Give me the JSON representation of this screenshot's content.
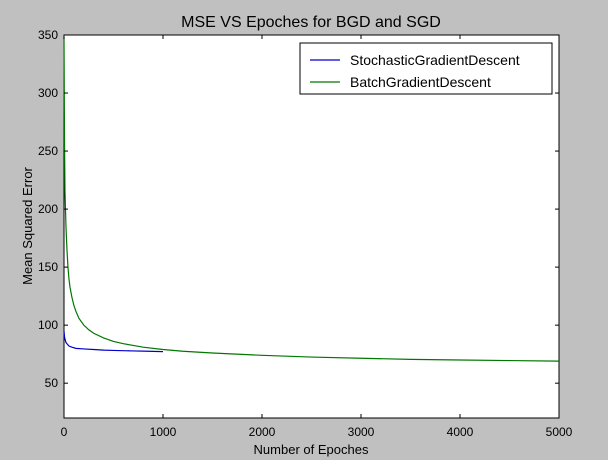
{
  "chart_data": {
    "type": "line",
    "title": "MSE VS Epoches for BGD and SGD",
    "xlabel": "Number of Epoches",
    "ylabel": "Mean Squared Error",
    "xlim": [
      0,
      5000
    ],
    "ylim": [
      20,
      350
    ],
    "xticks": [
      0,
      1000,
      2000,
      3000,
      4000,
      5000
    ],
    "yticks": [
      50,
      100,
      150,
      200,
      250,
      300,
      350
    ],
    "grid": false,
    "legend_position": "top-right",
    "series": [
      {
        "name": "StochasticGradientDescent",
        "color": "#0000cc",
        "x": [
          0,
          5,
          10,
          20,
          30,
          50,
          80,
          120,
          200,
          300,
          400,
          500,
          600,
          700,
          800,
          900,
          1000
        ],
        "y": [
          95,
          90,
          88,
          85,
          84,
          82,
          81,
          80,
          79.5,
          79,
          78.5,
          78.2,
          78,
          77.8,
          77.6,
          77.4,
          77.2
        ]
      },
      {
        "name": "BatchGradientDescent",
        "color": "#007700",
        "x": [
          0,
          5,
          10,
          20,
          30,
          40,
          50,
          60,
          80,
          100,
          120,
          150,
          200,
          250,
          300,
          400,
          500,
          600,
          700,
          800,
          1000,
          1200,
          1500,
          2000,
          2500,
          3000,
          3500,
          4000,
          4500,
          5000
        ],
        "y": [
          348,
          260,
          215,
          185,
          165,
          150,
          140,
          133,
          124,
          117,
          112,
          106,
          100,
          96,
          93,
          89,
          86,
          84,
          82.5,
          81,
          79,
          77.5,
          76,
          74,
          72.5,
          71.5,
          70.5,
          70,
          69.5,
          69
        ]
      }
    ]
  }
}
